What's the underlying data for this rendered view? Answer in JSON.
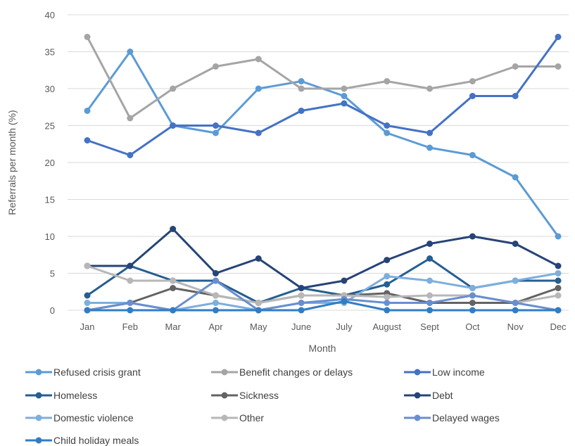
{
  "chart_data": {
    "type": "line",
    "xlabel": "Month",
    "ylabel": "Referrals per month (%)",
    "ylim": [
      0,
      40
    ],
    "yticks": [
      0,
      5,
      10,
      15,
      20,
      25,
      30,
      35,
      40
    ],
    "grid": true,
    "legend_position": "bottom",
    "categories": [
      "Jan",
      "Feb",
      "Mar",
      "Apr",
      "May",
      "June",
      "July",
      "August",
      "Sept",
      "Oct",
      "Nov",
      "Dec"
    ],
    "series": [
      {
        "name": "Refused crisis grant",
        "color": "#5b9bd5",
        "values": [
          27,
          35,
          25,
          24,
          30,
          31,
          29,
          24,
          22,
          21,
          18,
          10
        ]
      },
      {
        "name": "Benefit changes or delays",
        "color": "#a5a5a5",
        "values": [
          37,
          26,
          30,
          33,
          34,
          30,
          30,
          31,
          30,
          31,
          33,
          33
        ]
      },
      {
        "name": "Low income",
        "color": "#4472c4",
        "values": [
          23,
          21,
          25,
          25,
          24,
          27,
          28,
          25,
          24,
          29,
          29,
          37
        ]
      },
      {
        "name": "Homeless",
        "color": "#255e91",
        "values": [
          2,
          6,
          4,
          4,
          1,
          3,
          2,
          3.5,
          7,
          3,
          4,
          4
        ]
      },
      {
        "name": "Sickness",
        "color": "#636363",
        "values": [
          0,
          1,
          3,
          2,
          1,
          2,
          2,
          2.3,
          1,
          1,
          1,
          3
        ]
      },
      {
        "name": "Debt",
        "color": "#264478",
        "values": [
          6,
          6,
          11,
          5,
          7,
          3,
          4,
          6.8,
          9,
          10,
          9,
          6
        ]
      },
      {
        "name": "Domestic violence",
        "color": "#7cafdd",
        "values": [
          1,
          1,
          0,
          1,
          0,
          1,
          1,
          4.6,
          4,
          3,
          4,
          5
        ]
      },
      {
        "name": "Other",
        "color": "#b7b7b7",
        "values": [
          6,
          4,
          4,
          2,
          1,
          2,
          2,
          1.8,
          2,
          2,
          1,
          2
        ]
      },
      {
        "name": "Delayed wages",
        "color": "#698ed0",
        "values": [
          0,
          1,
          0,
          4,
          0,
          1,
          1.5,
          1,
          1,
          2,
          1,
          0
        ]
      },
      {
        "name": "Child holiday meals",
        "color": "#327dc2",
        "values": [
          0,
          0,
          0,
          0,
          0,
          0,
          1.2,
          0,
          0,
          0,
          0,
          0
        ]
      }
    ]
  }
}
